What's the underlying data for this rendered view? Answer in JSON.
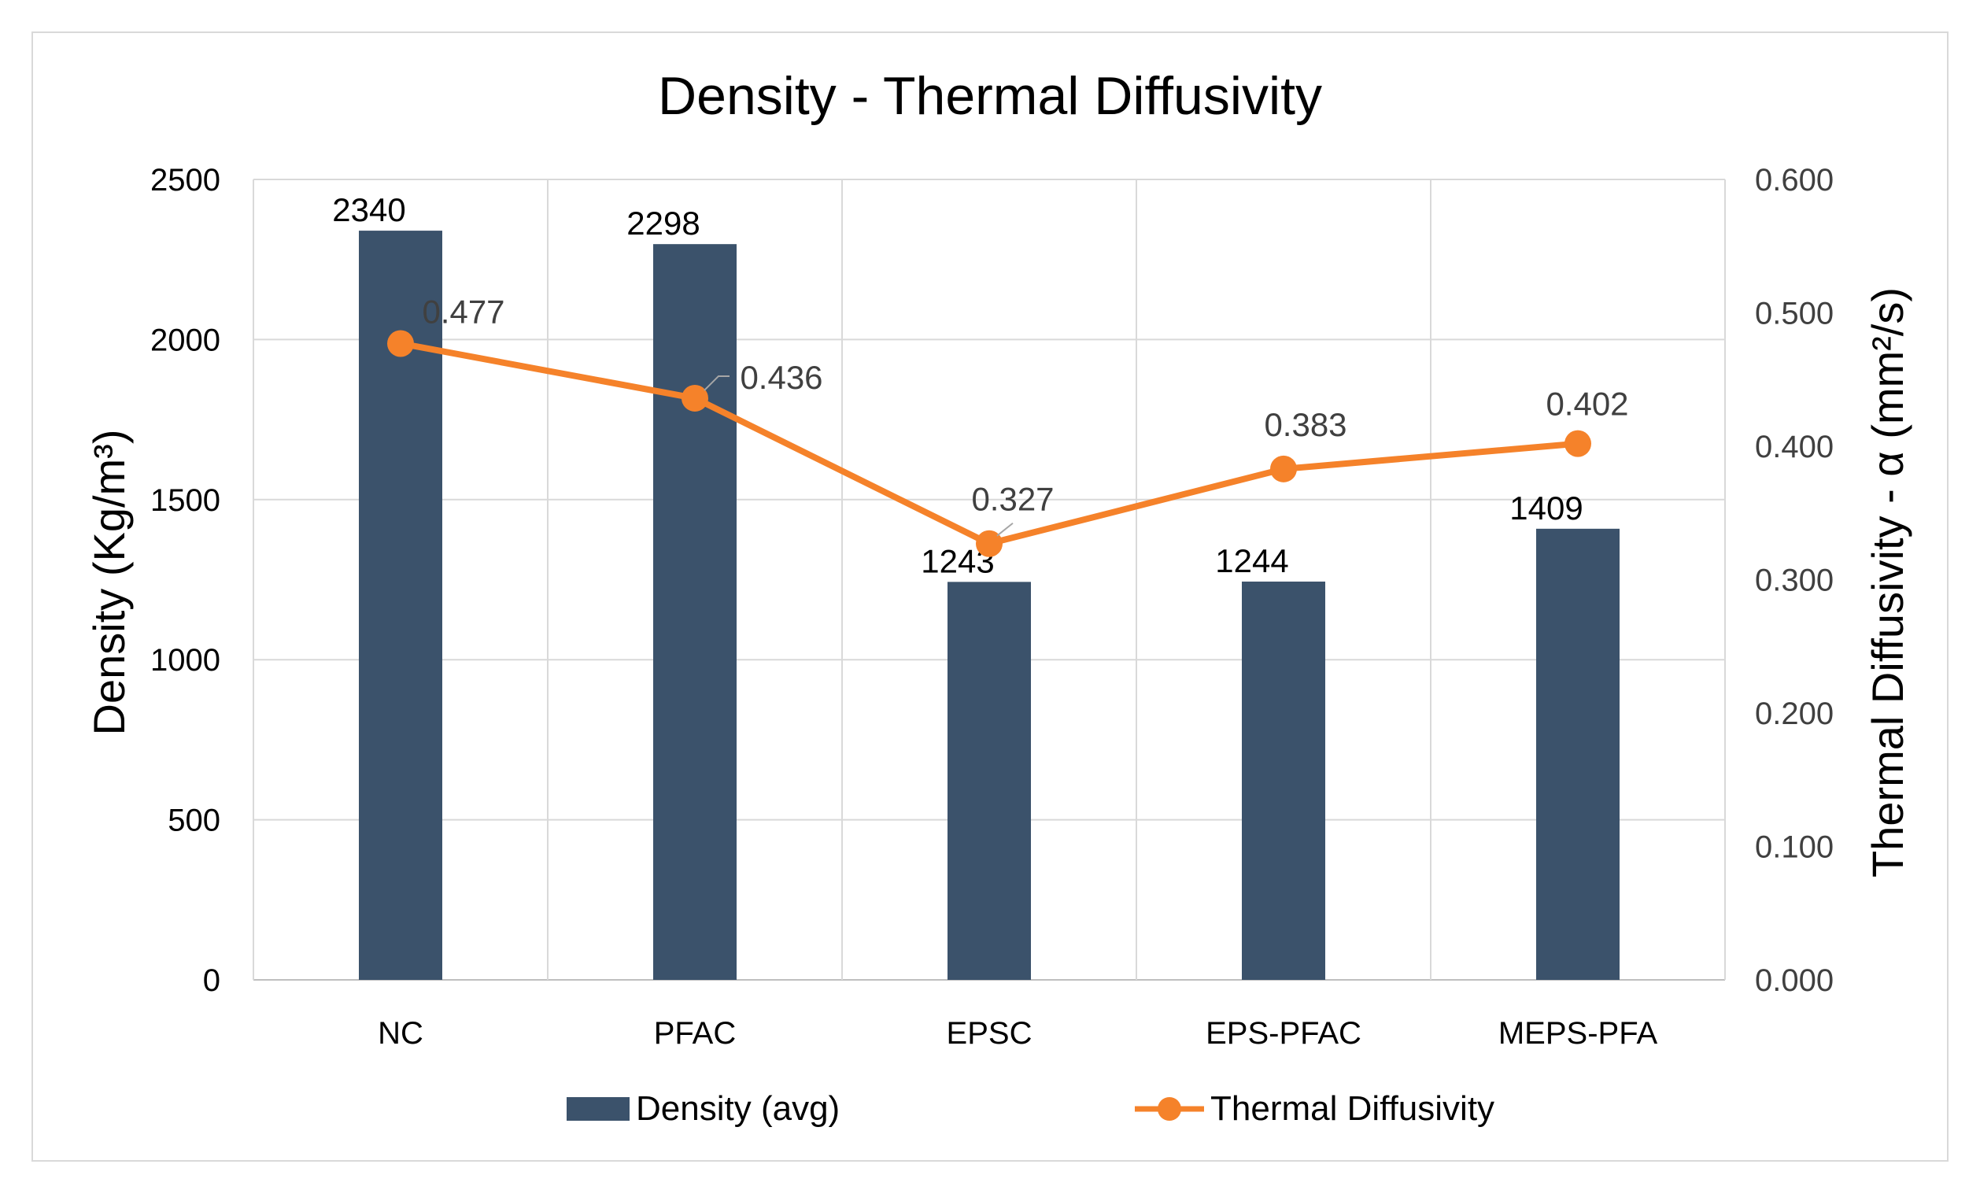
{
  "chart_data": {
    "type": "bar",
    "title": "Density - Thermal Diffusivity",
    "categories": [
      "NC",
      "PFAC",
      "EPSC",
      "EPS-PFAC",
      "MEPS-PFA"
    ],
    "ylabel_left": "Density (Kg/m³)",
    "ylabel_right": "Thermal Diffusivity - α (mm²/s)",
    "ylim_left": [
      0,
      2500
    ],
    "ylim_right": [
      0,
      0.6
    ],
    "yticks_left": [
      "0",
      "500",
      "1000",
      "1500",
      "2000",
      "2500"
    ],
    "yticks_right": [
      "0.000",
      "0.100",
      "0.200",
      "0.300",
      "0.400",
      "0.500",
      "0.600"
    ],
    "grid": true,
    "legend_position": "bottom",
    "series": [
      {
        "name": "Density (avg)",
        "type": "bar",
        "axis": "left",
        "color": "#3b526b",
        "values": [
          2340,
          2298,
          1243,
          1244,
          1409
        ],
        "labels": [
          "2340",
          "2298",
          "1243",
          "1244",
          "1409"
        ]
      },
      {
        "name": "Thermal Diffusivity",
        "type": "line",
        "axis": "right",
        "color": "#f5822a",
        "values": [
          0.477,
          0.436,
          0.327,
          0.383,
          0.402
        ],
        "labels": [
          "0.477",
          "0.436",
          "0.327",
          "0.383",
          "0.402"
        ]
      }
    ]
  }
}
